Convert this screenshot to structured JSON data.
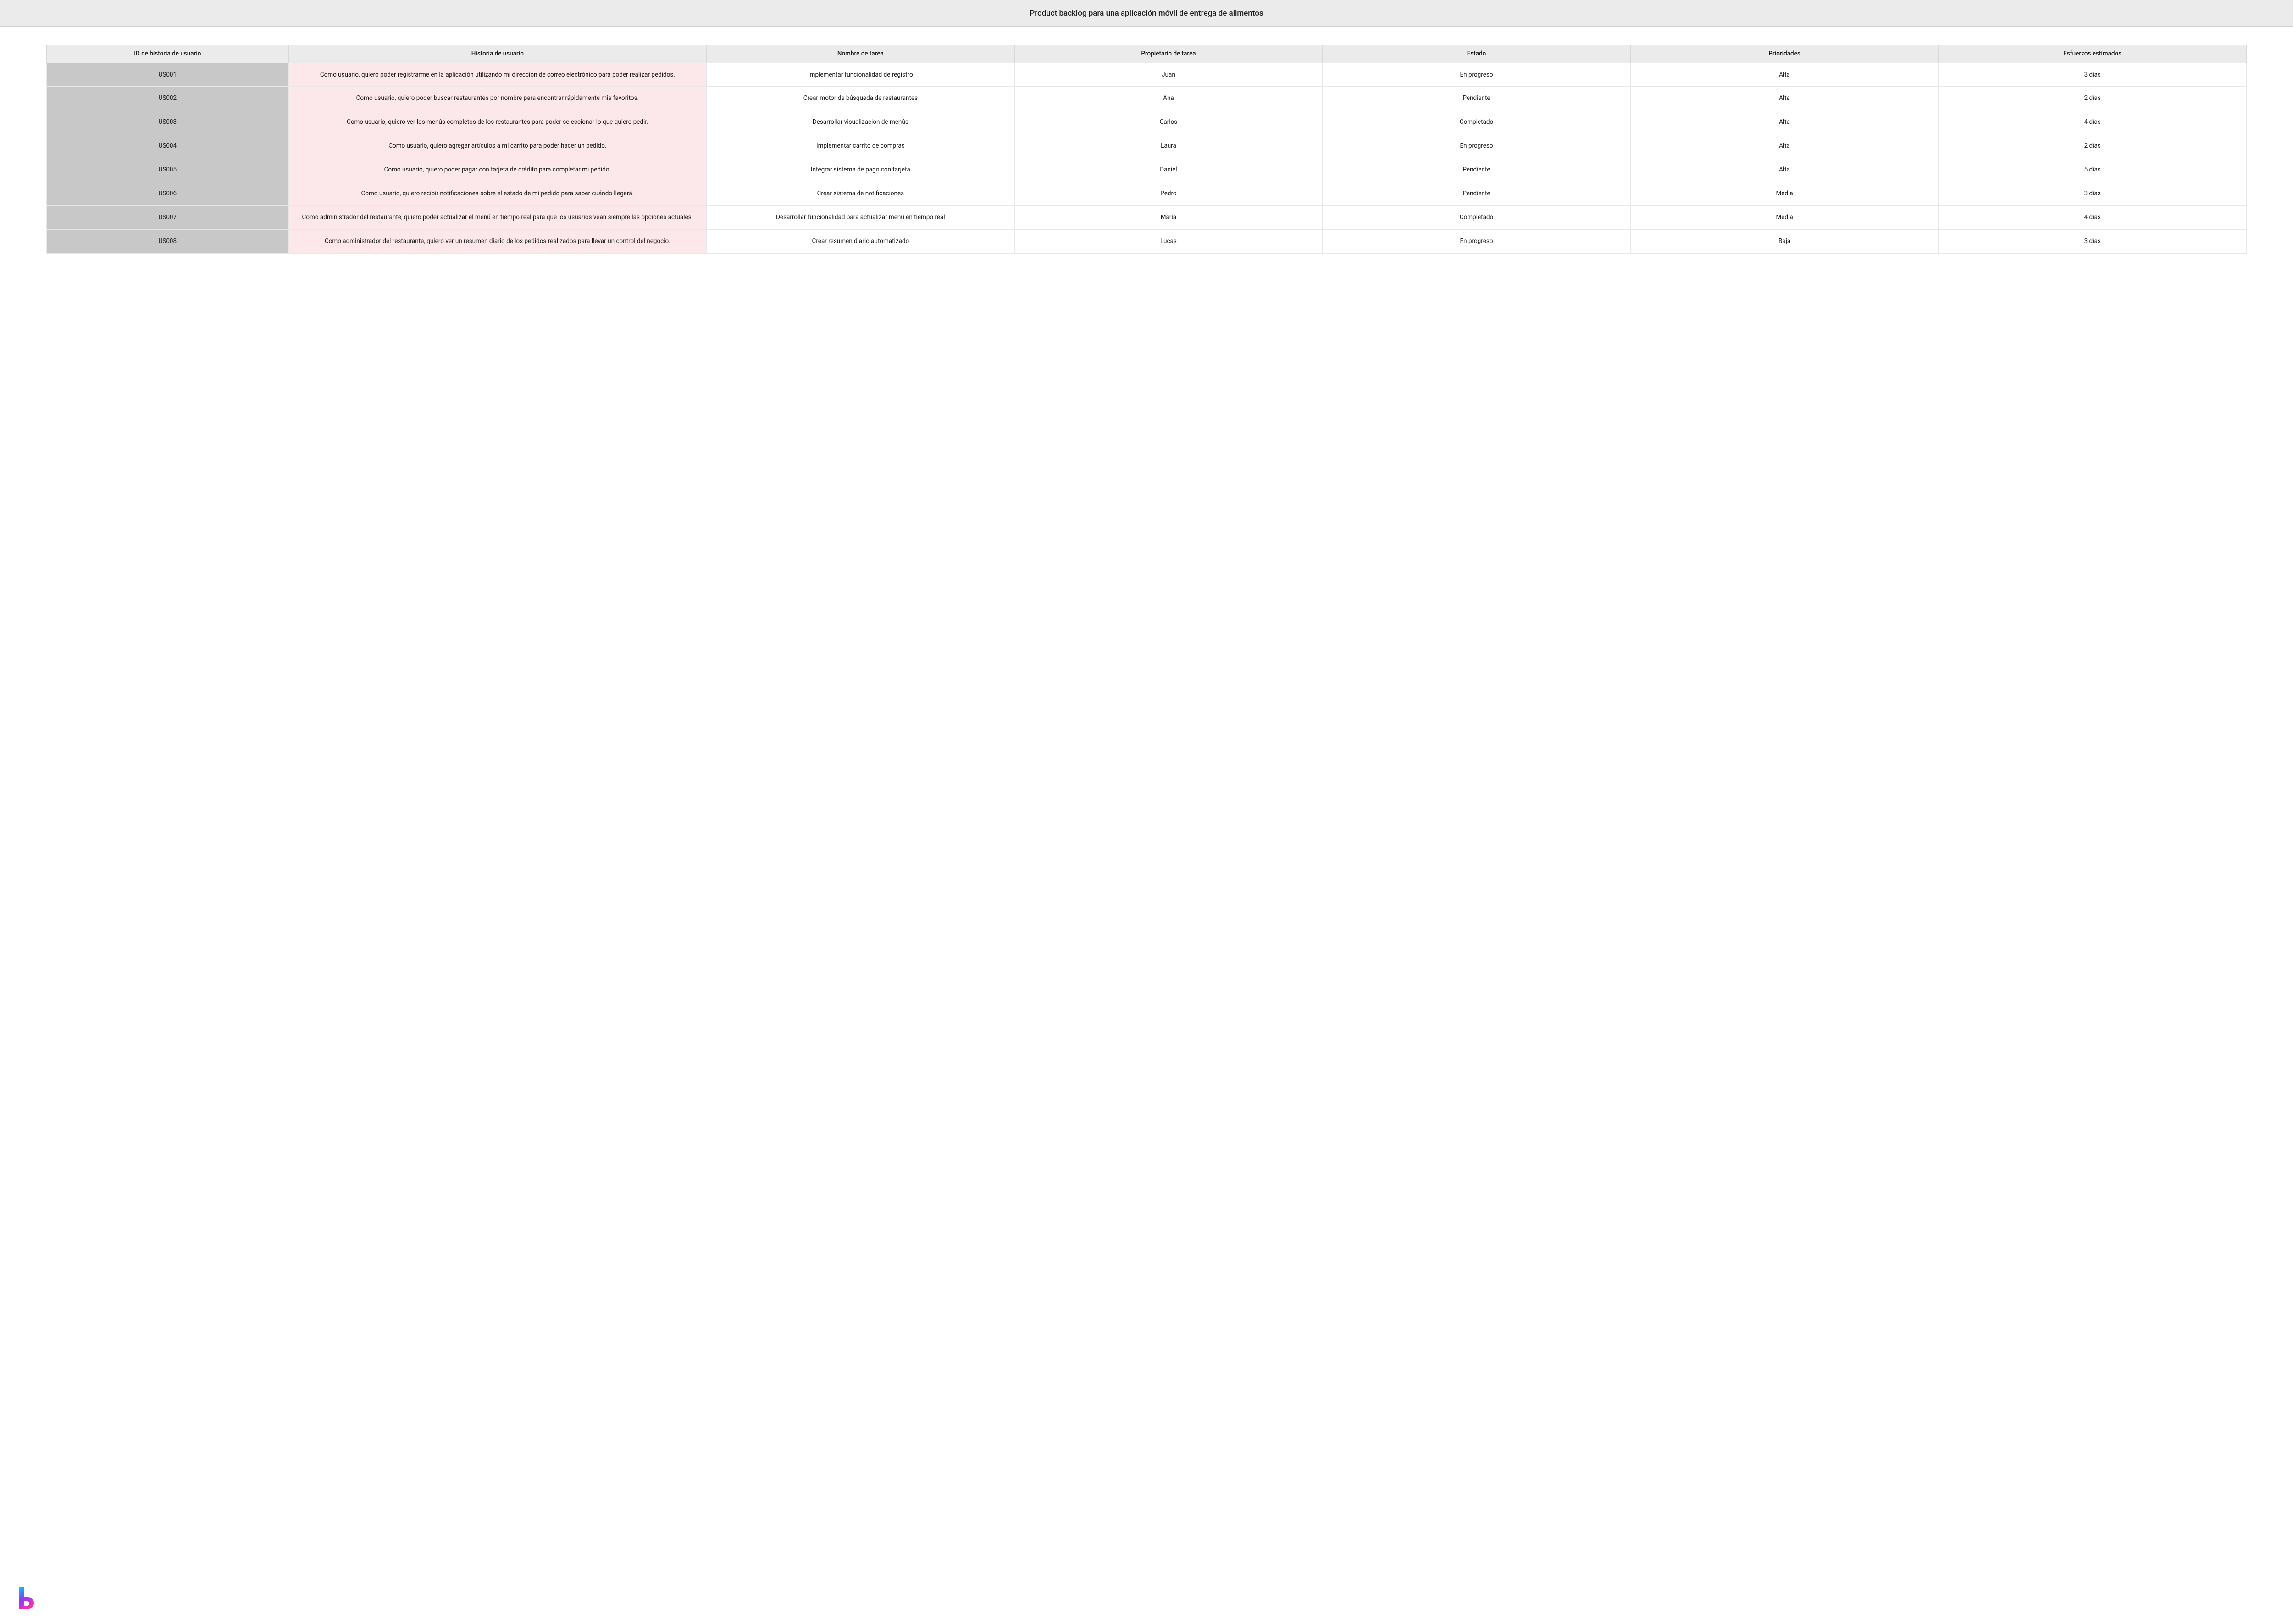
{
  "header": {
    "title": "Product backlog para una aplicación móvil de entrega de alimentos"
  },
  "table": {
    "columns": [
      "ID de historia de usuario",
      "Historia de usuario",
      "Nombre de tarea",
      "Propietario de tarea",
      "Estado",
      "Prioridades",
      "Esfuerzos estimados"
    ],
    "column_widths_pct": [
      11,
      19,
      14,
      14,
      14,
      14,
      14
    ],
    "header_bg": "#ebebeb",
    "id_col_bg": "#c8c8c8",
    "story_col_bg": "#fce8eb",
    "border_color": "#e8e8e8",
    "rows": [
      {
        "id": "US001",
        "story": "Como usuario, quiero poder registrarme en la aplicación utilizando mi dirección de correo electrónico para poder realizar pedidos.",
        "task": "Implementar funcionalidad de registro",
        "owner": "Juan",
        "status": "En progreso",
        "priority": "Alta",
        "effort": "3 días"
      },
      {
        "id": "US002",
        "story": "Como usuario, quiero poder buscar restaurantes por nombre para encontrar rápidamente mis favoritos.",
        "task": "Crear motor de búsqueda de restaurantes",
        "owner": "Ana",
        "status": "Pendiente",
        "priority": "Alta",
        "effort": "2 días"
      },
      {
        "id": "US003",
        "story": "Como usuario, quiero ver los menús completos de los restaurantes para poder seleccionar lo que quiero pedir.",
        "task": "Desarrollar visualización de menús",
        "owner": "Carlos",
        "status": "Completado",
        "priority": "Alta",
        "effort": "4 días"
      },
      {
        "id": "US004",
        "story": "Como usuario, quiero agregar artículos a mi carrito para poder hacer un pedido.",
        "task": "Implementar carrito de compras",
        "owner": "Laura",
        "status": "En progreso",
        "priority": "Alta",
        "effort": "2 días"
      },
      {
        "id": "US005",
        "story": "Como usuario, quiero poder pagar con tarjeta de crédito para completar mi pedido.",
        "task": "Integrar sistema de pago con tarjeta",
        "owner": "Daniel",
        "status": "Pendiente",
        "priority": "Alta",
        "effort": "5 días"
      },
      {
        "id": "US006",
        "story": "Como usuario, quiero recibir notificaciones sobre el estado de mi pedido para saber cuándo llegará.",
        "task": "Crear sistema de notificaciones",
        "owner": "Pedro",
        "status": "Pendiente",
        "priority": "Media",
        "effort": "3 días"
      },
      {
        "id": "US007",
        "story": "Como administrador del restaurante, quiero poder actualizar el menú en tiempo real para que los usuarios vean siempre las opciones actuales.",
        "task": "Desarrollar funcionalidad para actualizar menú en tiempo real",
        "owner": "María",
        "status": "Completado",
        "priority": "Media",
        "effort": "4 días"
      },
      {
        "id": "US008",
        "story": "Como administrador del restaurante, quiero ver un resumen diario de los pedidos realizados para llevar un control del negocio.",
        "task": "Crear resumen diario automatizado",
        "owner": "Lucas",
        "status": "En progreso",
        "priority": "Baja",
        "effort": "3 días"
      }
    ]
  },
  "logo": {
    "colors": {
      "top": "#00c8ff",
      "mid": "#8a3cff",
      "bottom": "#ff2db0"
    }
  }
}
